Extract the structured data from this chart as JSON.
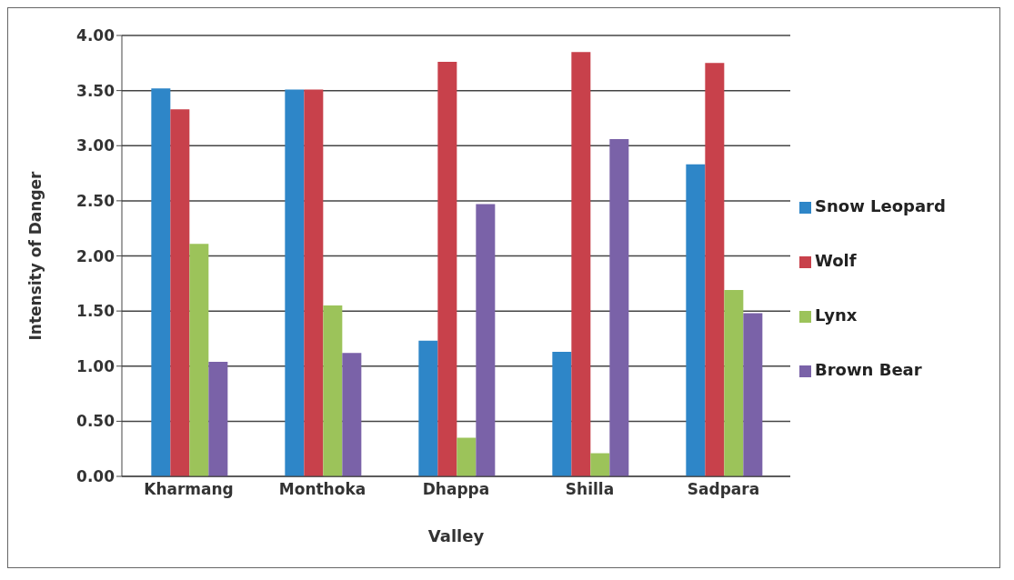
{
  "chart_data": {
    "type": "bar",
    "xlabel": "Valley",
    "ylabel": "Intensity of Danger",
    "categories": [
      "Kharmang",
      "Monthoka",
      "Dhappa",
      "Shilla",
      "Sadpara"
    ],
    "series": [
      {
        "name": "Snow Leopard",
        "color": "#2e86c8",
        "values": [
          3.52,
          3.51,
          1.23,
          1.13,
          2.83
        ]
      },
      {
        "name": "Wolf",
        "color": "#c8414b",
        "values": [
          3.33,
          3.51,
          3.76,
          3.85,
          3.75
        ]
      },
      {
        "name": "Lynx",
        "color": "#9cc35a",
        "values": [
          2.11,
          1.55,
          0.35,
          0.21,
          1.69
        ]
      },
      {
        "name": "Brown Bear",
        "color": "#7a62a8",
        "values": [
          1.04,
          1.12,
          2.47,
          3.06,
          1.48
        ]
      }
    ],
    "ylim": [
      0,
      4
    ],
    "yticks": [
      {
        "value": 0,
        "label": "0.00"
      },
      {
        "value": 0.5,
        "label": "0.50"
      },
      {
        "value": 1,
        "label": "1.00"
      },
      {
        "value": 1.5,
        "label": "1.50"
      },
      {
        "value": 2,
        "label": "2.00"
      },
      {
        "value": 2.5,
        "label": "2.50"
      },
      {
        "value": 3,
        "label": "3.00"
      },
      {
        "value": 3.5,
        "label": "3.50"
      },
      {
        "value": 4,
        "label": "4.00"
      }
    ],
    "grid": "y",
    "legend": "right"
  }
}
